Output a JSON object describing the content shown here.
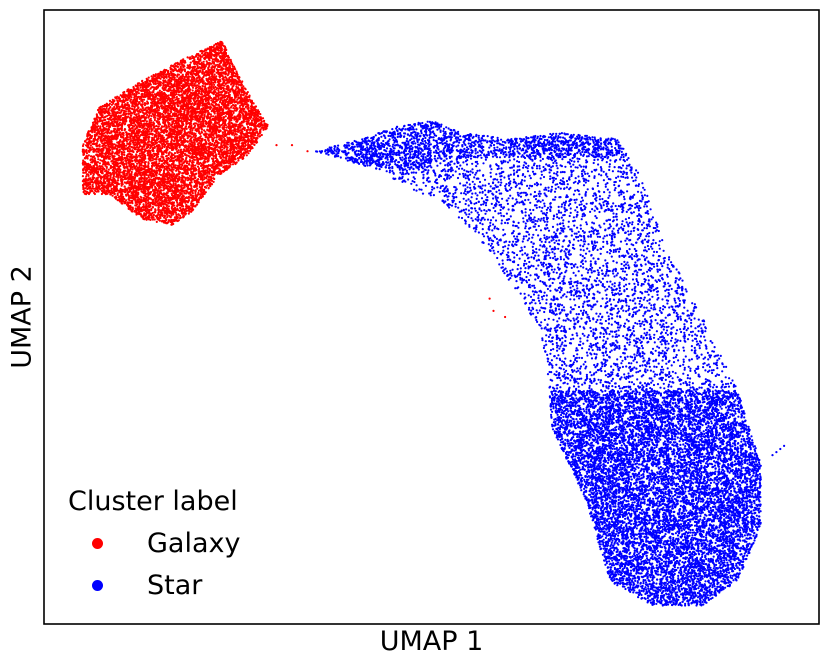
{
  "chart_data": {
    "type": "scatter",
    "title": "",
    "xlabel": "UMAP 1",
    "ylabel": "UMAP 2",
    "x_ticks": [],
    "y_ticks": [],
    "grid": false,
    "legend": {
      "title": "Cluster label",
      "placement": "lower-left"
    },
    "series": [
      {
        "name": "Galaxy",
        "color": "#ff0000",
        "region": [
          [
            0.05,
            0.22
          ],
          [
            0.07,
            0.16
          ],
          [
            0.12,
            0.12
          ],
          [
            0.18,
            0.08
          ],
          [
            0.23,
            0.05
          ],
          [
            0.245,
            0.09
          ],
          [
            0.27,
            0.15
          ],
          [
            0.29,
            0.19
          ],
          [
            0.26,
            0.24
          ],
          [
            0.225,
            0.27
          ],
          [
            0.19,
            0.33
          ],
          [
            0.165,
            0.35
          ],
          [
            0.125,
            0.34
          ],
          [
            0.085,
            0.3
          ],
          [
            0.05,
            0.3
          ]
        ],
        "stragglers": [
          [
            0.3,
            0.22
          ],
          [
            0.32,
            0.22
          ],
          [
            0.34,
            0.23
          ],
          [
            0.575,
            0.47
          ],
          [
            0.58,
            0.49
          ],
          [
            0.595,
            0.5
          ]
        ]
      },
      {
        "name": "Star",
        "color": "#0000ff",
        "region": [
          [
            0.35,
            0.23
          ],
          [
            0.41,
            0.21
          ],
          [
            0.455,
            0.19
          ],
          [
            0.5,
            0.18
          ],
          [
            0.54,
            0.2
          ],
          [
            0.6,
            0.21
          ],
          [
            0.665,
            0.2
          ],
          [
            0.74,
            0.21
          ],
          [
            0.77,
            0.27
          ],
          [
            0.8,
            0.38
          ],
          [
            0.85,
            0.5
          ],
          [
            0.895,
            0.62
          ],
          [
            0.925,
            0.74
          ],
          [
            0.925,
            0.84
          ],
          [
            0.895,
            0.93
          ],
          [
            0.85,
            0.97
          ],
          [
            0.785,
            0.97
          ],
          [
            0.73,
            0.93
          ],
          [
            0.7,
            0.8
          ],
          [
            0.655,
            0.68
          ],
          [
            0.65,
            0.59
          ],
          [
            0.64,
            0.52
          ],
          [
            0.595,
            0.43
          ],
          [
            0.555,
            0.36
          ],
          [
            0.51,
            0.31
          ],
          [
            0.47,
            0.29
          ],
          [
            0.43,
            0.26
          ]
        ],
        "stragglers": [
          [
            0.95,
            0.715
          ],
          [
            0.945,
            0.72
          ],
          [
            0.94,
            0.725
          ],
          [
            0.955,
            0.71
          ]
        ]
      }
    ]
  }
}
